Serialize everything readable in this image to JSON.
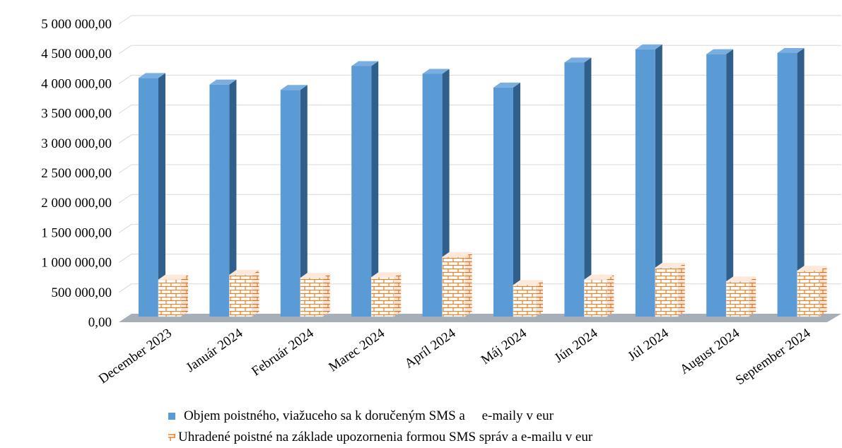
{
  "chart_data": {
    "type": "bar",
    "title": "",
    "xlabel": "",
    "ylabel": "",
    "ylim": [
      0,
      5000000
    ],
    "y_ticks": [
      "0,00",
      "500 000,00",
      "1 000 000,00",
      "1 500 000,00",
      "2 000 000,00",
      "2 500 000,00",
      "3 000 000,00",
      "3 500 000,00",
      "4 000 000,00",
      "4 500 000,00",
      "5 000 000,00"
    ],
    "y_tick_values": [
      0,
      500000,
      1000000,
      1500000,
      2000000,
      2500000,
      3000000,
      3500000,
      4000000,
      4500000,
      5000000
    ],
    "categories": [
      "December 2023",
      "Január 2024",
      "Február 2024",
      "Marec 2024",
      "Apríl 2024",
      "Máj 2024",
      "Jún 2024",
      "Júl 2024",
      "August 2024",
      "September 2024"
    ],
    "series": [
      {
        "name": "Objem poistného, viažuceho sa k doručeným SMS a     e-maily v eur",
        "color": "#5b9bd5",
        "values": [
          4000000,
          3890000,
          3800000,
          4200000,
          4070000,
          3840000,
          4260000,
          4480000,
          4400000,
          4420000
        ]
      },
      {
        "name": "Uhradené poistné na základe upozornenia formou SMS správ a e-mailu v eur",
        "color": "#f07d22",
        "pattern": "brick",
        "values": [
          620000,
          700000,
          650000,
          660000,
          1000000,
          530000,
          620000,
          820000,
          590000,
          770000
        ]
      }
    ],
    "grid": true,
    "legend_position": "bottom",
    "three_d": true
  }
}
